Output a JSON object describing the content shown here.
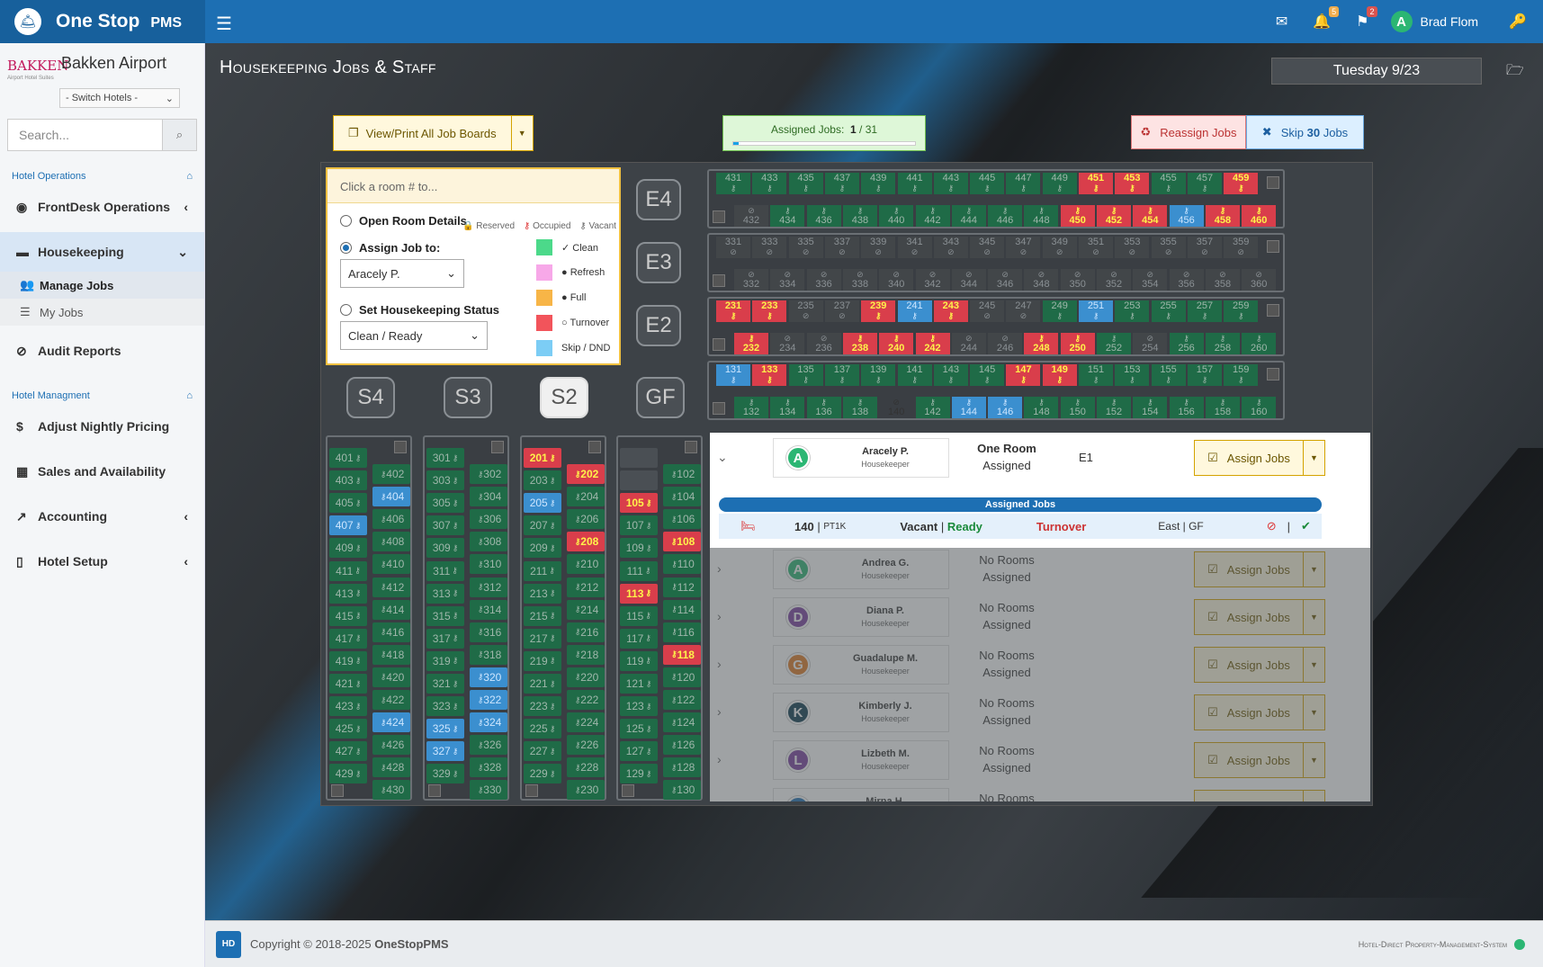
{
  "app": {
    "name": "One Stop",
    "suffix": "PMS"
  },
  "topbar": {
    "mail_count": "",
    "bell_count": "5",
    "flag_count": "2",
    "user_name": "Brad Flom",
    "user_initial": "A"
  },
  "hotel": {
    "name": "Bakken Airport",
    "logo_text": "BAKKEN",
    "logo_sub": "Airport Hotel Suites",
    "switch": "- Switch Hotels -"
  },
  "search": {
    "placeholder": "Search..."
  },
  "nav": {
    "sec1": "Hotel Operations",
    "frontdesk": "FrontDesk Operations",
    "housekeeping": "Housekeeping",
    "manage_jobs": "Manage Jobs",
    "my_jobs": "My Jobs",
    "audit": "Audit Reports",
    "sec2": "Hotel Managment",
    "pricing": "Adjust Nightly Pricing",
    "sales": "Sales and Availability",
    "accounting": "Accounting",
    "setup": "Hotel Setup"
  },
  "page": {
    "title": "Housekeeping Jobs & Staff",
    "date": "Tuesday 9/23"
  },
  "actions": {
    "view_print": "View/Print All Job Boards",
    "assigned_label": "Assigned Jobs:",
    "assigned_done": "1",
    "assigned_total": "31",
    "assigned_progress": 0.032,
    "reassign": "Reassign Jobs",
    "skip_pre": "Skip",
    "skip_count": "30",
    "skip_post": "Jobs"
  },
  "panel": {
    "hint": "Click a room # to...",
    "open_details": "Open Room Details",
    "reserved": "Reserved",
    "occupied": "Occupied",
    "vacant": "Vacant",
    "assign_to": "Assign Job to:",
    "assign_value": "Aracely P.",
    "set_status": "Set Housekeeping Status",
    "status_value": "Clean / Ready",
    "legend": [
      {
        "label": "✓ Clean",
        "color": "#4cd98a"
      },
      {
        "label": "● Refresh",
        "color": "#f7a8e8"
      },
      {
        "label": "● Full",
        "color": "#f7b547"
      },
      {
        "label": "○ Turnover",
        "color": "#f2545b"
      },
      {
        "label": "Skip / DND",
        "color": "#7ccdf5"
      }
    ]
  },
  "floors": {
    "E4": "E4",
    "E3": "E3",
    "E2": "E2",
    "S4": "S4",
    "S3": "S3",
    "S2": "S2",
    "GF": "GF"
  },
  "hrows": [
    {
      "top": [
        [
          "431",
          "c"
        ],
        [
          "433",
          "c"
        ],
        [
          "435",
          "c"
        ],
        [
          "437",
          "c"
        ],
        [
          "439",
          "c"
        ],
        [
          "441",
          "c"
        ],
        [
          "443",
          "c"
        ],
        [
          "445",
          "c"
        ],
        [
          "447",
          "c"
        ],
        [
          "449",
          "c"
        ],
        [
          "451",
          "o"
        ],
        [
          "453",
          "o"
        ],
        [
          "455",
          "c"
        ],
        [
          "457",
          "c"
        ],
        [
          "459",
          "o"
        ]
      ],
      "bot": [
        [
          "432",
          "d"
        ],
        [
          "434",
          "c"
        ],
        [
          "436",
          "c"
        ],
        [
          "438",
          "c"
        ],
        [
          "440",
          "c"
        ],
        [
          "442",
          "c"
        ],
        [
          "444",
          "c"
        ],
        [
          "446",
          "c"
        ],
        [
          "448",
          "c"
        ],
        [
          "450",
          "o"
        ],
        [
          "452",
          "o"
        ],
        [
          "454",
          "o"
        ],
        [
          "456",
          "s"
        ],
        [
          "458",
          "o"
        ],
        [
          "460",
          "o"
        ]
      ]
    },
    {
      "top": [
        [
          "331",
          "d"
        ],
        [
          "333",
          "d"
        ],
        [
          "335",
          "d"
        ],
        [
          "337",
          "d"
        ],
        [
          "339",
          "d"
        ],
        [
          "341",
          "d"
        ],
        [
          "343",
          "d"
        ],
        [
          "345",
          "d"
        ],
        [
          "347",
          "d"
        ],
        [
          "349",
          "d"
        ],
        [
          "351",
          "d"
        ],
        [
          "353",
          "d"
        ],
        [
          "355",
          "d"
        ],
        [
          "357",
          "d"
        ],
        [
          "359",
          "d"
        ]
      ],
      "bot": [
        [
          "332",
          "d"
        ],
        [
          "334",
          "d"
        ],
        [
          "336",
          "d"
        ],
        [
          "338",
          "d"
        ],
        [
          "340",
          "d"
        ],
        [
          "342",
          "d"
        ],
        [
          "344",
          "d"
        ],
        [
          "346",
          "d"
        ],
        [
          "348",
          "d"
        ],
        [
          "350",
          "d"
        ],
        [
          "352",
          "d"
        ],
        [
          "354",
          "d"
        ],
        [
          "356",
          "d"
        ],
        [
          "358",
          "d"
        ],
        [
          "360",
          "d"
        ]
      ]
    },
    {
      "top": [
        [
          "231",
          "o"
        ],
        [
          "233",
          "o"
        ],
        [
          "235",
          "d"
        ],
        [
          "237",
          "d"
        ],
        [
          "239",
          "o"
        ],
        [
          "241",
          "s"
        ],
        [
          "243",
          "o"
        ],
        [
          "245",
          "d"
        ],
        [
          "247",
          "d"
        ],
        [
          "249",
          "c"
        ],
        [
          "251",
          "s"
        ],
        [
          "253",
          "c"
        ],
        [
          "255",
          "c"
        ],
        [
          "257",
          "c"
        ],
        [
          "259",
          "c"
        ]
      ],
      "bot": [
        [
          "232",
          "o"
        ],
        [
          "234",
          "d"
        ],
        [
          "236",
          "d"
        ],
        [
          "238",
          "o"
        ],
        [
          "240",
          "o"
        ],
        [
          "242",
          "o"
        ],
        [
          "244",
          "d"
        ],
        [
          "246",
          "d"
        ],
        [
          "248",
          "o"
        ],
        [
          "250",
          "o"
        ],
        [
          "252",
          "c"
        ],
        [
          "254",
          "d"
        ],
        [
          "256",
          "c"
        ],
        [
          "258",
          "c"
        ],
        [
          "260",
          "c"
        ]
      ]
    },
    {
      "top": [
        [
          "131",
          "s"
        ],
        [
          "133",
          "o"
        ],
        [
          "135",
          "c"
        ],
        [
          "137",
          "c"
        ],
        [
          "139",
          "c"
        ],
        [
          "141",
          "c"
        ],
        [
          "143",
          "c"
        ],
        [
          "145",
          "c"
        ],
        [
          "147",
          "o"
        ],
        [
          "149",
          "o"
        ],
        [
          "151",
          "c"
        ],
        [
          "153",
          "c"
        ],
        [
          "155",
          "c"
        ],
        [
          "157",
          "c"
        ],
        [
          "159",
          "c"
        ]
      ],
      "bot": [
        [
          "132",
          "c"
        ],
        [
          "134",
          "c"
        ],
        [
          "136",
          "c"
        ],
        [
          "138",
          "c"
        ],
        [
          "140",
          "b"
        ],
        [
          "142",
          "c"
        ],
        [
          "144",
          "s"
        ],
        [
          "146",
          "s"
        ],
        [
          "148",
          "c"
        ],
        [
          "150",
          "c"
        ],
        [
          "152",
          "c"
        ],
        [
          "154",
          "c"
        ],
        [
          "156",
          "c"
        ],
        [
          "158",
          "c"
        ],
        [
          "160",
          "c"
        ]
      ]
    }
  ],
  "vcols": [
    {
      "left": [
        [
          "401",
          "c"
        ],
        [
          "403",
          "c"
        ],
        [
          "405",
          "c"
        ],
        [
          "407",
          "s"
        ],
        [
          "409",
          "c"
        ],
        [
          "411",
          "c"
        ],
        [
          "413",
          "c"
        ],
        [
          "415",
          "c"
        ],
        [
          "417",
          "c"
        ],
        [
          "419",
          "c"
        ],
        [
          "421",
          "c"
        ],
        [
          "423",
          "c"
        ],
        [
          "425",
          "c"
        ],
        [
          "427",
          "c"
        ],
        [
          "429",
          "c"
        ]
      ],
      "right": [
        [
          "402",
          "c"
        ],
        [
          "404",
          "s"
        ],
        [
          "406",
          "c"
        ],
        [
          "408",
          "c"
        ],
        [
          "410",
          "c"
        ],
        [
          "412",
          "c"
        ],
        [
          "414",
          "c"
        ],
        [
          "416",
          "c"
        ],
        [
          "418",
          "c"
        ],
        [
          "420",
          "c"
        ],
        [
          "422",
          "c"
        ],
        [
          "424",
          "s"
        ],
        [
          "426",
          "c"
        ],
        [
          "428",
          "c"
        ],
        [
          "430",
          "c"
        ]
      ]
    },
    {
      "left": [
        [
          "301",
          "c"
        ],
        [
          "303",
          "c"
        ],
        [
          "305",
          "c"
        ],
        [
          "307",
          "c"
        ],
        [
          "309",
          "c"
        ],
        [
          "311",
          "c"
        ],
        [
          "313",
          "c"
        ],
        [
          "315",
          "c"
        ],
        [
          "317",
          "c"
        ],
        [
          "319",
          "c"
        ],
        [
          "321",
          "c"
        ],
        [
          "323",
          "c"
        ],
        [
          "325",
          "s"
        ],
        [
          "327",
          "s"
        ],
        [
          "329",
          "c"
        ]
      ],
      "right": [
        [
          "302",
          "c"
        ],
        [
          "304",
          "c"
        ],
        [
          "306",
          "c"
        ],
        [
          "308",
          "c"
        ],
        [
          "310",
          "c"
        ],
        [
          "312",
          "c"
        ],
        [
          "314",
          "c"
        ],
        [
          "316",
          "c"
        ],
        [
          "318",
          "c"
        ],
        [
          "320",
          "s"
        ],
        [
          "322",
          "s"
        ],
        [
          "324",
          "s"
        ],
        [
          "326",
          "c"
        ],
        [
          "328",
          "c"
        ],
        [
          "330",
          "c"
        ]
      ]
    },
    {
      "left": [
        [
          "201",
          "o"
        ],
        [
          "203",
          "c"
        ],
        [
          "205",
          "s"
        ],
        [
          "207",
          "c"
        ],
        [
          "209",
          "c"
        ],
        [
          "211",
          "c"
        ],
        [
          "213",
          "c"
        ],
        [
          "215",
          "c"
        ],
        [
          "217",
          "c"
        ],
        [
          "219",
          "c"
        ],
        [
          "221",
          "c"
        ],
        [
          "223",
          "c"
        ],
        [
          "225",
          "c"
        ],
        [
          "227",
          "c"
        ],
        [
          "229",
          "c"
        ]
      ],
      "right": [
        [
          "202",
          "o"
        ],
        [
          "204",
          "c"
        ],
        [
          "206",
          "c"
        ],
        [
          "208",
          "o"
        ],
        [
          "210",
          "c"
        ],
        [
          "212",
          "c"
        ],
        [
          "214",
          "c"
        ],
        [
          "216",
          "c"
        ],
        [
          "218",
          "c"
        ],
        [
          "220",
          "c"
        ],
        [
          "222",
          "c"
        ],
        [
          "224",
          "c"
        ],
        [
          "226",
          "c"
        ],
        [
          "228",
          "c"
        ],
        [
          "230",
          "c"
        ]
      ]
    },
    {
      "left": [
        [
          "",
          "d"
        ],
        [
          "",
          "d"
        ],
        [
          "105",
          "o"
        ],
        [
          "107",
          "c"
        ],
        [
          "109",
          "c"
        ],
        [
          "111",
          "c"
        ],
        [
          "113",
          "o"
        ],
        [
          "115",
          "c"
        ],
        [
          "117",
          "c"
        ],
        [
          "119",
          "c"
        ],
        [
          "121",
          "c"
        ],
        [
          "123",
          "c"
        ],
        [
          "125",
          "c"
        ],
        [
          "127",
          "c"
        ],
        [
          "129",
          "c"
        ]
      ],
      "right": [
        [
          "102",
          "c"
        ],
        [
          "104",
          "c"
        ],
        [
          "106",
          "c"
        ],
        [
          "108",
          "o"
        ],
        [
          "110",
          "c"
        ],
        [
          "112",
          "c"
        ],
        [
          "114",
          "c"
        ],
        [
          "116",
          "c"
        ],
        [
          "118",
          "o"
        ],
        [
          "120",
          "c"
        ],
        [
          "122",
          "c"
        ],
        [
          "124",
          "c"
        ],
        [
          "126",
          "c"
        ],
        [
          "128",
          "c"
        ],
        [
          "130",
          "c"
        ]
      ]
    }
  ],
  "staff": [
    {
      "initial": "A",
      "name": "Aracely P.",
      "role": "Housekeeper",
      "line1": "One Room",
      "line2": "Assigned",
      "floor": "E1",
      "color": "#2bb673",
      "expanded": true
    },
    {
      "initial": "A",
      "name": "Andrea G.",
      "role": "Housekeeper",
      "line1": "No Rooms",
      "line2": "Assigned",
      "floor": "",
      "color": "#2bb673"
    },
    {
      "initial": "D",
      "name": "Diana P.",
      "role": "Housekeeper",
      "line1": "No Rooms",
      "line2": "Assigned",
      "floor": "",
      "color": "#7a3fa0"
    },
    {
      "initial": "G",
      "name": "Guadalupe M.",
      "role": "Housekeeper",
      "line1": "No Rooms",
      "line2": "Assigned",
      "floor": "",
      "color": "#e07a24"
    },
    {
      "initial": "K",
      "name": "Kimberly J.",
      "role": "Housekeeper",
      "line1": "No Rooms",
      "line2": "Assigned",
      "floor": "",
      "color": "#0d3b4f"
    },
    {
      "initial": "L",
      "name": "Lizbeth M.",
      "role": "Housekeeper",
      "line1": "No Rooms",
      "line2": "Assigned",
      "floor": "",
      "color": "#7a3fa0"
    },
    {
      "initial": "M",
      "name": "Mirna H.",
      "role": "Housekeeper",
      "line1": "No Rooms",
      "line2": "Assigned",
      "floor": "",
      "color": "#1d6fb3"
    }
  ],
  "assign_btn": "Assign Jobs",
  "jobs": {
    "header": "Assigned Jobs",
    "room": "140",
    "type": "PT1K",
    "vacancy": "Vacant",
    "readiness": "Ready",
    "job": "Turnover",
    "location": "East | GF"
  },
  "footer": {
    "logo": "HD",
    "copy_pre": "Copyright © 2018-2025 ",
    "copy_brand": "OneStopPMS",
    "tagline": "Hotel-Direct Property-Management-System"
  }
}
